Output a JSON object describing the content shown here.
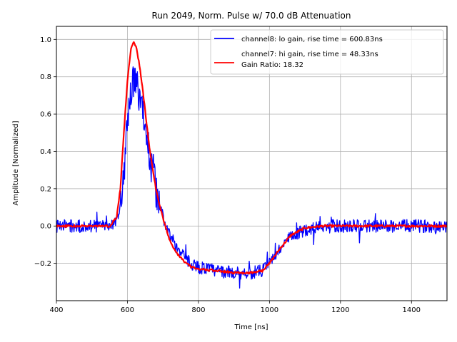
{
  "chart_data": {
    "type": "line",
    "title": "Run 2049, Norm. Pulse w/ 70.0 dB Attenuation",
    "xlabel": "Time [ns]",
    "ylabel": "Amplitude [Normalized]",
    "xlim": [
      400,
      1500
    ],
    "ylim": [
      -0.4,
      1.07
    ],
    "xticks": [
      400,
      600,
      800,
      1000,
      1200,
      1400
    ],
    "yticks": [
      -0.2,
      0.0,
      0.2,
      0.4,
      0.6,
      0.8,
      1.0
    ],
    "xtick_labels": [
      "400",
      "600",
      "800",
      "1000",
      "1200",
      "1400"
    ],
    "ytick_labels": [
      "−0.2",
      "0.0",
      "0.2",
      "0.4",
      "0.6",
      "0.8",
      "1.0"
    ],
    "grid": true,
    "legend_position": "top-right",
    "series": [
      {
        "name": "channel8: lo gain, rise time = 600.83ns",
        "color": "#0000ff",
        "noisy": true,
        "x": [
          400,
          550,
          575,
          590,
          600,
          610,
          620,
          630,
          640,
          650,
          660,
          680,
          700,
          720,
          740,
          760,
          780,
          800,
          850,
          900,
          950,
          980,
          1000,
          1030,
          1060,
          1100,
          1150,
          1200,
          1300,
          1400,
          1500
        ],
        "y": [
          0.0,
          0.0,
          0.05,
          0.3,
          0.55,
          0.75,
          0.8,
          0.72,
          0.65,
          0.55,
          0.42,
          0.2,
          0.05,
          -0.05,
          -0.12,
          -0.17,
          -0.2,
          -0.22,
          -0.24,
          -0.25,
          -0.25,
          -0.24,
          -0.2,
          -0.12,
          -0.06,
          -0.02,
          0.0,
          0.0,
          0.0,
          0.0,
          0.0
        ]
      },
      {
        "name": "channel7: hi gain, rise time = 48.33ns",
        "color": "#ff0000",
        "noisy": false,
        "x": [
          400,
          550,
          570,
          580,
          590,
          600,
          610,
          617,
          625,
          635,
          645,
          660,
          680,
          700,
          720,
          740,
          760,
          780,
          800,
          850,
          900,
          950,
          980,
          1000,
          1030,
          1060,
          1100,
          1150,
          1200,
          1300,
          1400,
          1500
        ],
        "y": [
          0.0,
          0.0,
          0.05,
          0.2,
          0.5,
          0.78,
          0.95,
          0.99,
          0.96,
          0.85,
          0.7,
          0.45,
          0.2,
          0.04,
          -0.08,
          -0.15,
          -0.19,
          -0.22,
          -0.23,
          -0.24,
          -0.25,
          -0.25,
          -0.24,
          -0.2,
          -0.12,
          -0.05,
          -0.01,
          0.0,
          0.0,
          0.0,
          0.0,
          0.0
        ]
      }
    ],
    "annotations": [
      "Gain Ratio: 18.32"
    ]
  }
}
